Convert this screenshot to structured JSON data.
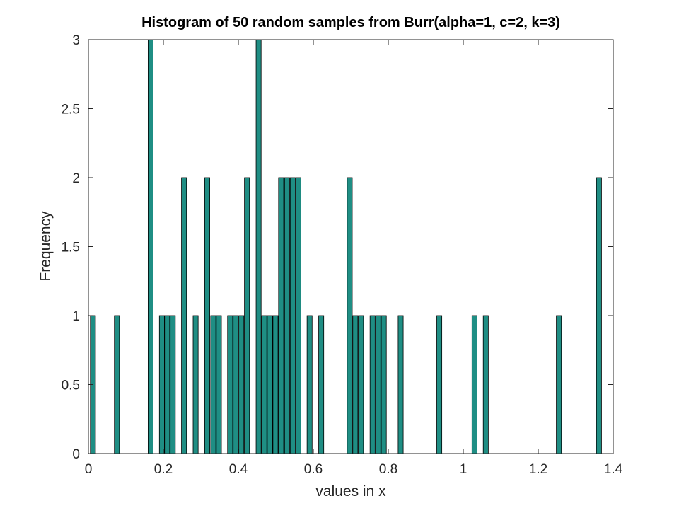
{
  "chart_data": {
    "type": "bar",
    "title": "Histogram of 50 random samples from Burr(alpha=1, c=2, k=3)",
    "xlabel": "values in x",
    "ylabel": "Frequency",
    "xlim": [
      0,
      1.4
    ],
    "ylim": [
      0,
      3
    ],
    "x_ticks": [
      "0",
      "0.2",
      "0.4",
      "0.6",
      "0.8",
      "1",
      "1.2",
      "1.4"
    ],
    "y_ticks": [
      "0",
      "0.5",
      "1",
      "1.5",
      "2",
      "2.5",
      "3"
    ],
    "grid": false,
    "bar_color": "#1f8e84",
    "bar_edge_color": "#000000",
    "bin_width": 0.0135,
    "bars": [
      {
        "x": 0.012,
        "value": 1
      },
      {
        "x": 0.076,
        "value": 1
      },
      {
        "x": 0.166,
        "value": 3
      },
      {
        "x": 0.196,
        "value": 1
      },
      {
        "x": 0.21,
        "value": 1
      },
      {
        "x": 0.225,
        "value": 1
      },
      {
        "x": 0.255,
        "value": 2
      },
      {
        "x": 0.286,
        "value": 1
      },
      {
        "x": 0.317,
        "value": 2
      },
      {
        "x": 0.333,
        "value": 1
      },
      {
        "x": 0.348,
        "value": 1
      },
      {
        "x": 0.378,
        "value": 1
      },
      {
        "x": 0.393,
        "value": 1
      },
      {
        "x": 0.408,
        "value": 1
      },
      {
        "x": 0.423,
        "value": 2
      },
      {
        "x": 0.454,
        "value": 3
      },
      {
        "x": 0.469,
        "value": 1
      },
      {
        "x": 0.484,
        "value": 1
      },
      {
        "x": 0.499,
        "value": 1
      },
      {
        "x": 0.514,
        "value": 2
      },
      {
        "x": 0.53,
        "value": 2
      },
      {
        "x": 0.545,
        "value": 2
      },
      {
        "x": 0.56,
        "value": 2
      },
      {
        "x": 0.59,
        "value": 1
      },
      {
        "x": 0.621,
        "value": 1
      },
      {
        "x": 0.697,
        "value": 2
      },
      {
        "x": 0.712,
        "value": 1
      },
      {
        "x": 0.727,
        "value": 1
      },
      {
        "x": 0.758,
        "value": 1
      },
      {
        "x": 0.773,
        "value": 1
      },
      {
        "x": 0.788,
        "value": 1
      },
      {
        "x": 0.833,
        "value": 1
      },
      {
        "x": 0.936,
        "value": 1
      },
      {
        "x": 1.03,
        "value": 1
      },
      {
        "x": 1.06,
        "value": 1
      },
      {
        "x": 1.255,
        "value": 1
      },
      {
        "x": 1.362,
        "value": 2
      }
    ]
  }
}
